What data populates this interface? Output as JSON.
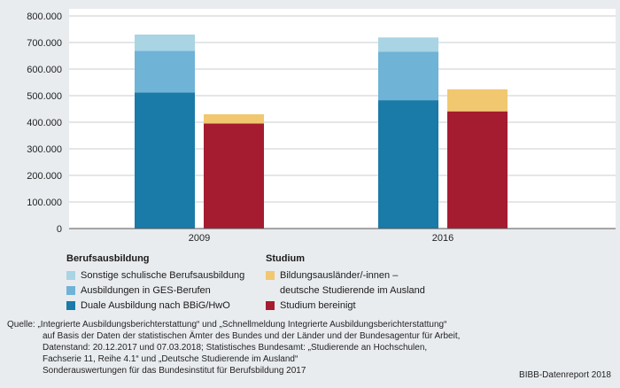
{
  "chart_data": {
    "type": "bar",
    "stacked": true,
    "categories": [
      "2009",
      "2016"
    ],
    "y_tick_labels": [
      "0",
      "100.000",
      "200.000",
      "300.000",
      "400.000",
      "500.000",
      "600.000",
      "700.000",
      "800.000"
    ],
    "ylim": [
      0,
      800000
    ],
    "groups": [
      {
        "name": "Berufsausbildung",
        "series": [
          {
            "name": "Duale Ausbildung nach BBiG/HwO",
            "color": "#1a7aa8",
            "values": [
              512000,
              483000
            ]
          },
          {
            "name": "Ausbildungen in GES-Berufen",
            "color": "#6fb3d6",
            "values": [
              157000,
              182000
            ]
          },
          {
            "name": "Sonstige schulische Berufsausbildung",
            "color": "#a9d4e3",
            "values": [
              61000,
              54000
            ]
          }
        ]
      },
      {
        "name": "Studium",
        "series": [
          {
            "name": "Studium bereinigt",
            "color": "#a51c30",
            "values": [
              395000,
              441000
            ]
          },
          {
            "name": "Bildungsausländer/-innen – deutsche Studierende im Ausland",
            "color": "#f1c870",
            "values": [
              35000,
              83000
            ]
          }
        ]
      }
    ]
  },
  "legend": {
    "berufs_title": "Berufsausbildung",
    "berufs_items": [
      {
        "label": "Sonstige schulische Berufsausbildung",
        "color": "#a9d4e3"
      },
      {
        "label": "Ausbildungen in GES-Berufen",
        "color": "#6fb3d6"
      },
      {
        "label": "Duale Ausbildung nach BBiG/HwO",
        "color": "#1a7aa8"
      }
    ],
    "studium_title": "Studium",
    "studium_items": [
      {
        "label_line1": "Bildungsausländer/-innen –",
        "label_line2": "deutsche Studierende im Ausland",
        "color": "#f1c870"
      },
      {
        "label_line1": "Studium bereinigt",
        "color": "#a51c30"
      }
    ]
  },
  "source": {
    "lines": [
      "Quelle: „Integrierte Ausbildungsberichterstattung“ und „Schnellmeldung Integrierte Ausbildungsberichterstattung“",
      "auf Basis der Daten der statistischen Ämter des Bundes und der Länder und der Bundesagentur für Arbeit,",
      "Datenstand: 20.12.2017 und 07.03.2018; Statistisches Bundesamt: „Studierende an Hochschulen,",
      "Fachserie 11, Reihe 4.1“ und „Deutsche Studierende im Ausland“",
      "Sonderauswertungen für das Bundesinstitut für Berufsbildung 2017"
    ]
  },
  "credit": "BIBB-Datenreport 2018"
}
